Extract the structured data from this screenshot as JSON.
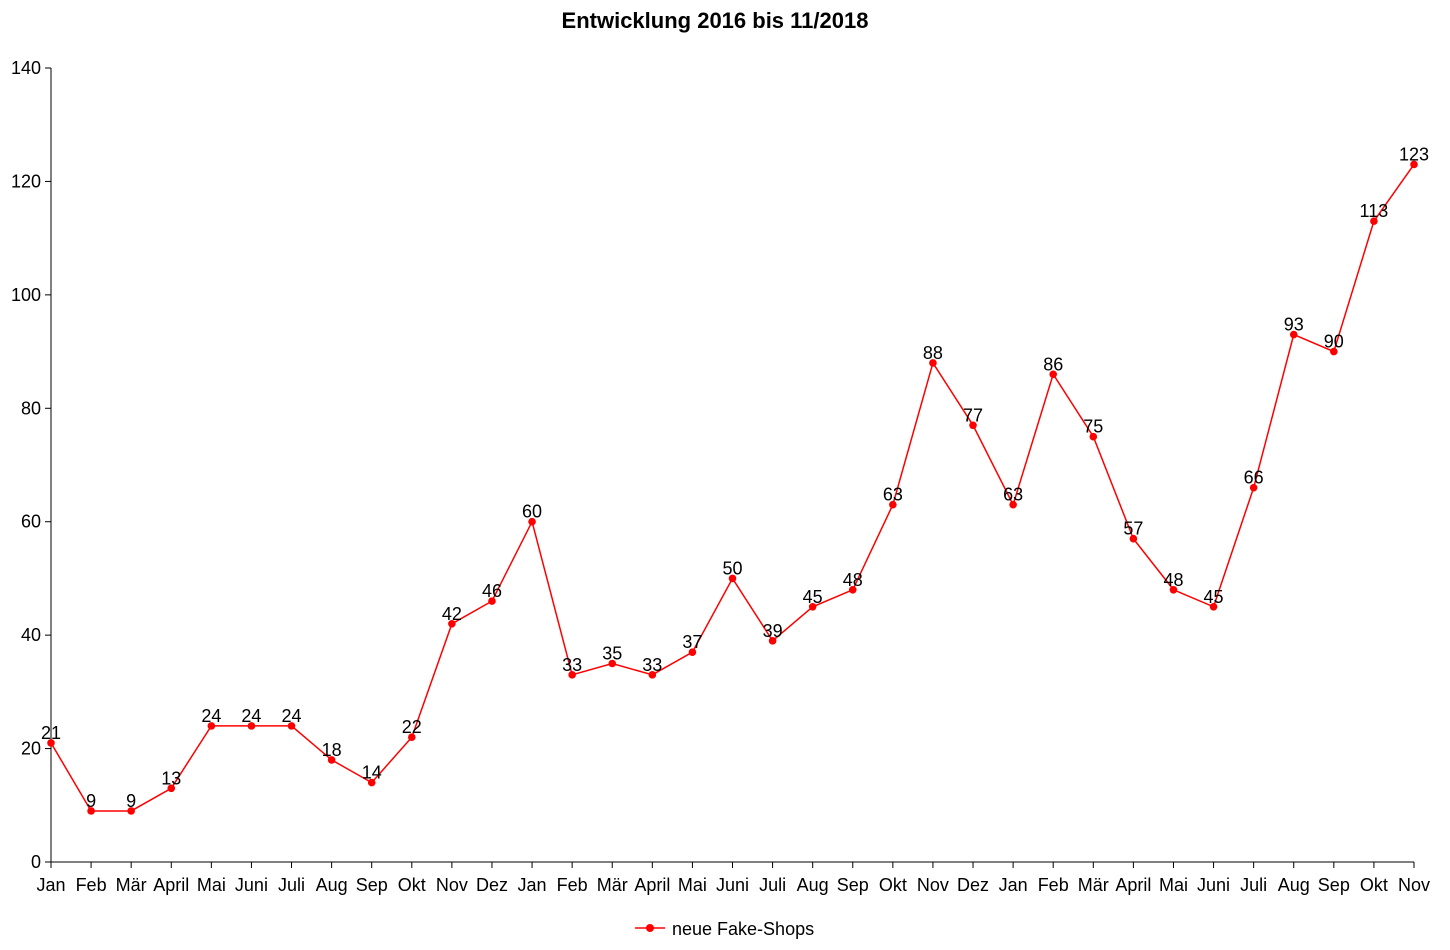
{
  "chart_data": {
    "type": "line",
    "title": "Entwicklung 2016 bis 11/2018",
    "xlabel": "",
    "ylabel": "",
    "ylim": [
      0,
      140
    ],
    "yticks": [
      0,
      20,
      40,
      60,
      80,
      100,
      120,
      140
    ],
    "grid": false,
    "legend_position": "bottom-center",
    "categories": [
      "Jan",
      "Feb",
      "Mär",
      "April",
      "Mai",
      "Juni",
      "Juli",
      "Aug",
      "Sep",
      "Okt",
      "Nov",
      "Dez",
      "Jan",
      "Feb",
      "Mär",
      "April",
      "Mai",
      "Juni",
      "Juli",
      "Aug",
      "Sep",
      "Okt",
      "Nov",
      "Dez",
      "Jan",
      "Feb",
      "Mär",
      "April",
      "Mai",
      "Juni",
      "Juli",
      "Aug",
      "Sep",
      "Okt",
      "Nov"
    ],
    "series": [
      {
        "name": "neue Fake-Shops",
        "color": "#ff0000",
        "values": [
          21,
          9,
          9,
          13,
          24,
          24,
          24,
          18,
          14,
          22,
          42,
          46,
          60,
          33,
          35,
          33,
          37,
          50,
          39,
          45,
          48,
          63,
          88,
          77,
          63,
          86,
          75,
          57,
          48,
          45,
          66,
          93,
          90,
          113,
          123
        ]
      }
    ],
    "axis_color": "#000000"
  }
}
